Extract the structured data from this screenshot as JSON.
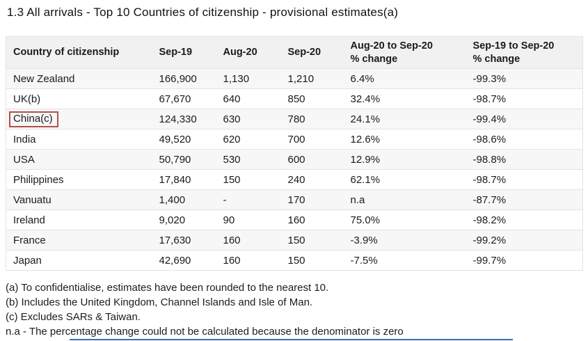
{
  "title": "1.3 All arrivals - Top 10 Countries of citizenship - provisional estimates(a)",
  "table": {
    "column_keys": [
      "country",
      "sep19",
      "aug20",
      "sep20",
      "mom_change",
      "yoy_change"
    ],
    "columns": [
      "Country of citizenship",
      "Sep-19",
      "Aug-20",
      "Sep-20",
      "Aug-20 to Sep-20\n% change",
      "Sep-19 to Sep-20\n% change"
    ],
    "rows": [
      {
        "country": "New Zealand",
        "sep19": "166,900",
        "aug20": "1,130",
        "sep20": "1,210",
        "mom": "6.4%",
        "yoy": "-99.3%",
        "highlight": false
      },
      {
        "country": "UK(b)",
        "sep19": "67,670",
        "aug20": "640",
        "sep20": "850",
        "mom": "32.4%",
        "yoy": "-98.7%",
        "highlight": false
      },
      {
        "country": "China(c)",
        "sep19": "124,330",
        "aug20": "630",
        "sep20": "780",
        "mom": "24.1%",
        "yoy": "-99.4%",
        "highlight": true
      },
      {
        "country": "India",
        "sep19": "49,520",
        "aug20": "620",
        "sep20": "700",
        "mom": "12.6%",
        "yoy": "-98.6%",
        "highlight": false
      },
      {
        "country": "USA",
        "sep19": "50,790",
        "aug20": "530",
        "sep20": "600",
        "mom": "12.9%",
        "yoy": "-98.8%",
        "highlight": false
      },
      {
        "country": "Philippines",
        "sep19": "17,840",
        "aug20": "150",
        "sep20": "240",
        "mom": "62.1%",
        "yoy": "-98.7%",
        "highlight": false
      },
      {
        "country": "Vanuatu",
        "sep19": "1,400",
        "aug20": "-",
        "sep20": "170",
        "mom": "n.a",
        "yoy": "-87.7%",
        "highlight": false
      },
      {
        "country": "Ireland",
        "sep19": "9,020",
        "aug20": "90",
        "sep20": "160",
        "mom": "75.0%",
        "yoy": "-98.2%",
        "highlight": false
      },
      {
        "country": "France",
        "sep19": "17,630",
        "aug20": "160",
        "sep20": "150",
        "mom": "-3.9%",
        "yoy": "-99.2%",
        "highlight": false
      },
      {
        "country": "Japan",
        "sep19": "42,690",
        "aug20": "160",
        "sep20": "150",
        "mom": "-7.5%",
        "yoy": "-99.7%",
        "highlight": false
      }
    ]
  },
  "footnotes": [
    "(a) To confidentialise, estimates have been rounded to the nearest 10.",
    "(b) Includes the United Kingdom, Channel Islands and Isle of Man.",
    "(c) Excludes SARs & Taiwan.",
    "n.a - The percentage change could not be calculated because the denominator is zero"
  ],
  "colors": {
    "highlight_border": "#b0504c",
    "header_bg": "#f1f1f1",
    "row_alt_bg": "#f7f7f7",
    "table_border": "#e3e3e3",
    "text": "#1a1a1a",
    "bottom_line": "#3b6fb5"
  }
}
